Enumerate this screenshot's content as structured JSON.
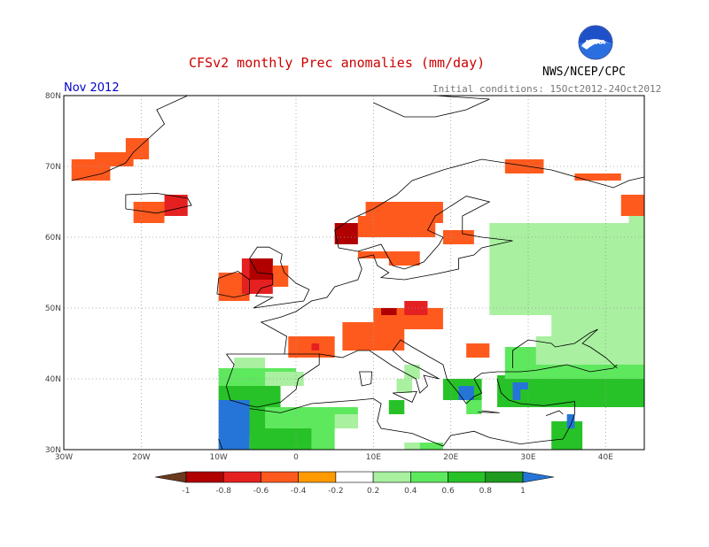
{
  "title": "CFSv2 monthly Prec anomalies (mm/day)",
  "month": "Nov 2012",
  "initial_conditions": "Initial conditions: 15Oct2012-24Oct2012",
  "agency": "NWS/NCEP/CPC",
  "logo_text": "NOAA",
  "map": {
    "lon_range": [
      -30,
      45
    ],
    "lat_range": [
      30,
      80
    ],
    "lat_ticks": [
      "30N",
      "40N",
      "50N",
      "60N",
      "70N",
      "80N"
    ],
    "lon_ticks": [
      "30W",
      "20W",
      "10W",
      "0",
      "10E",
      "20E",
      "30E",
      "40E"
    ]
  },
  "legend": {
    "labels": [
      "-1",
      "-0.8",
      "-0.6",
      "-0.4",
      "-0.2",
      "0.2",
      "0.4",
      "0.6",
      "0.8",
      "1"
    ],
    "colors": [
      "#6b3a1e",
      "#b00000",
      "#e52020",
      "#ff5a1e",
      "#ff9a00",
      "#ffffff",
      "#a9f0a0",
      "#5ee85e",
      "#27c227",
      "#1e9a1e",
      "#2575d8"
    ]
  }
}
